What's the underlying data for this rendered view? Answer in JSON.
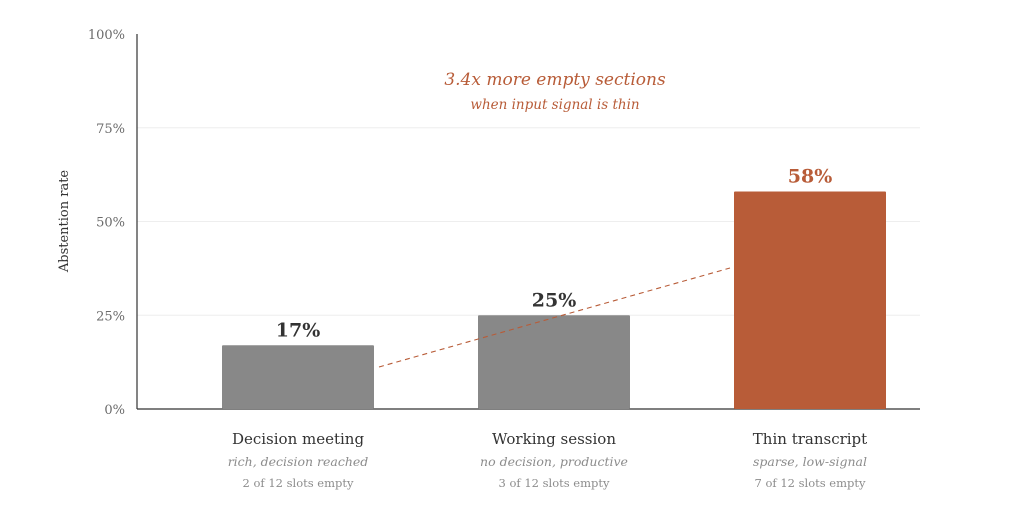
{
  "chart_data": {
    "type": "bar",
    "ylabel": "Abstention rate",
    "ylim": [
      0,
      100
    ],
    "yticks": [
      0,
      25,
      50,
      75,
      100
    ],
    "ytick_labels": [
      "0%",
      "25%",
      "50%",
      "75%",
      "100%"
    ],
    "grid": true,
    "categories": [
      "Decision meeting",
      "Working session",
      "Thin transcript"
    ],
    "category_subtitles": [
      "rich, decision reached",
      "no decision, productive",
      "sparse, low-signal"
    ],
    "category_details": [
      "2 of 12 slots empty",
      "3 of 12 slots empty",
      "7 of 12 slots empty"
    ],
    "values": [
      17,
      25,
      58
    ],
    "value_labels": [
      "17%",
      "25%",
      "58%"
    ],
    "bar_colors": [
      "#888888",
      "#888888",
      "#b85c38"
    ],
    "label_colors": [
      "#333333",
      "#333333",
      "#b85c38"
    ],
    "annotation": {
      "text": "3.4x more empty sections",
      "subtext": "when input signal is thin",
      "color": "#b85c38"
    },
    "trend_line": {
      "style": "dashed",
      "color": "#b85c38"
    }
  }
}
